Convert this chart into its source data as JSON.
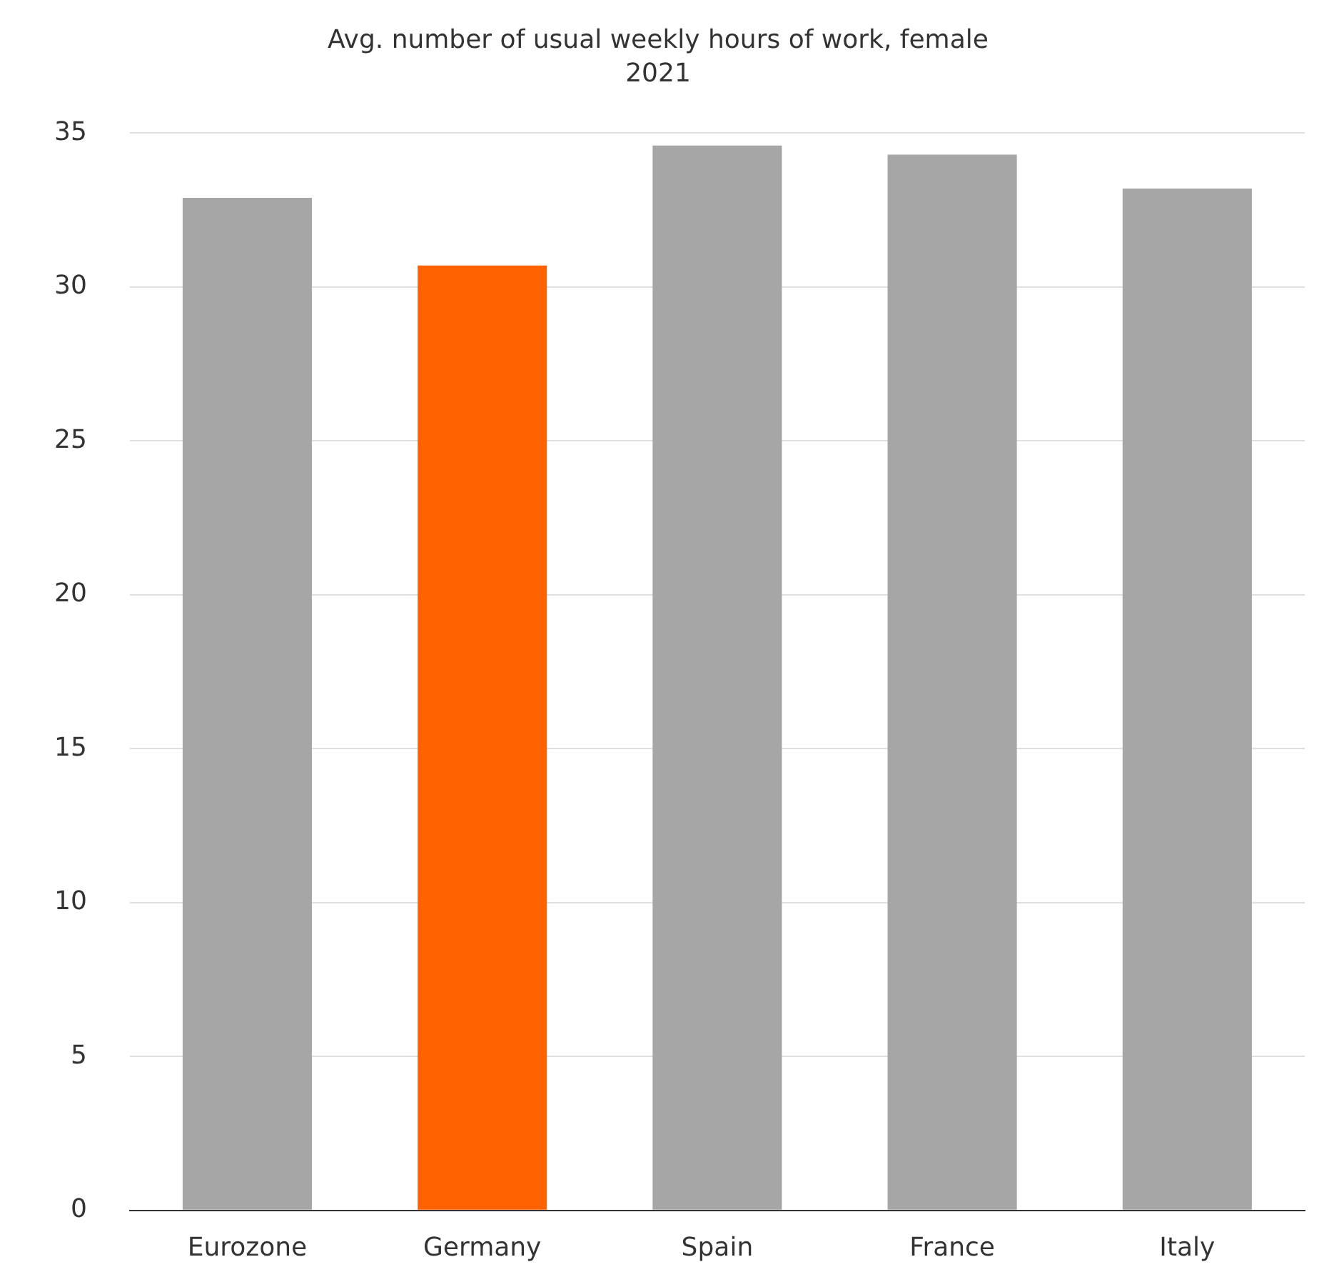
{
  "chart_data": {
    "type": "bar",
    "title": "Avg. number of usual weekly hours of work, female",
    "subtitle": "2021",
    "categories": [
      "Eurozone",
      "Germany",
      "Spain",
      "France",
      "Italy"
    ],
    "values": [
      32.9,
      30.7,
      34.6,
      34.3,
      33.2
    ],
    "colors": [
      "#a6a6a6",
      "#ff6200",
      "#a6a6a6",
      "#a6a6a6",
      "#a6a6a6"
    ],
    "ylim": [
      0,
      35
    ],
    "yticks": [
      0,
      5,
      10,
      15,
      20,
      25,
      30,
      35
    ],
    "grid": "y",
    "legend": false
  }
}
